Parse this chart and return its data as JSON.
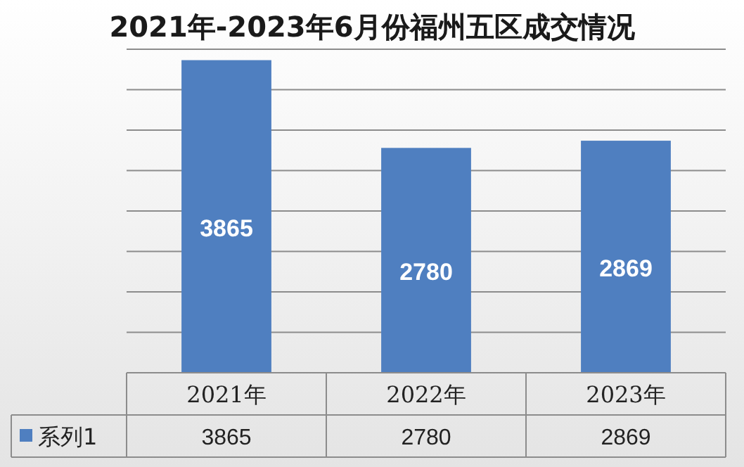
{
  "chart_data": {
    "type": "bar",
    "title": "2021年-2023年6月份福州五区成交情况",
    "categories": [
      "2021年",
      "2022年",
      "2023年"
    ],
    "series": [
      {
        "name": "系列1",
        "color": "#4f7fc0",
        "values": [
          3865,
          2780,
          2869
        ]
      }
    ],
    "ylim": [
      0,
      4000
    ],
    "yticks": [
      {
        "value": 0,
        "label": null
      },
      {
        "value": 500,
        "label": null
      },
      {
        "value": 1000,
        "label": null
      },
      {
        "value": 1500,
        "label": null
      },
      {
        "value": 2000,
        "label": null
      },
      {
        "value": 2500,
        "label": null
      },
      {
        "value": 3000,
        "label": null
      },
      {
        "value": 3500,
        "label": null
      },
      {
        "value": 4000,
        "label": null
      }
    ],
    "annotations": [
      "3865",
      "2780",
      "2869"
    ],
    "grid": "y",
    "data_labels": true,
    "legend": "bottom"
  }
}
